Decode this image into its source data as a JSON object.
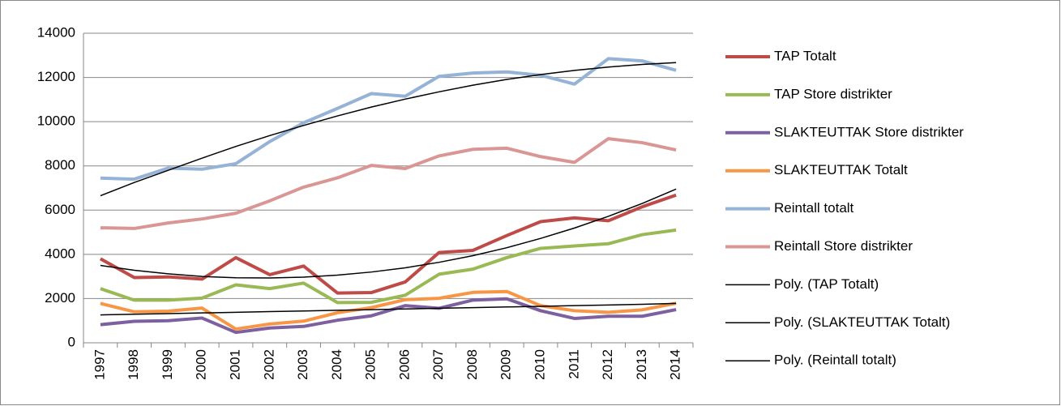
{
  "chart_data": {
    "type": "line",
    "categories": [
      "1997",
      "1998",
      "1999",
      "2000",
      "2001",
      "2002",
      "2003",
      "2004",
      "2005",
      "2006",
      "2007",
      "2008",
      "2009",
      "2010",
      "2011",
      "2012",
      "2013",
      "2014"
    ],
    "ylim": [
      0,
      14000
    ],
    "yticks": [
      0,
      2000,
      4000,
      6000,
      8000,
      10000,
      12000,
      14000
    ],
    "grid": true,
    "legend": "right",
    "series": [
      {
        "name": "TAP Totalt",
        "color": "#be4b48",
        "line_width": 4,
        "values": [
          3800,
          2950,
          2980,
          2880,
          3850,
          3080,
          3470,
          2250,
          2270,
          2750,
          4080,
          4180,
          4850,
          5480,
          5650,
          5520,
          6150,
          6680
        ]
      },
      {
        "name": "TAP Store distrikter",
        "color": "#98b954",
        "line_width": 4,
        "values": [
          2450,
          1930,
          1930,
          2020,
          2620,
          2450,
          2700,
          1820,
          1830,
          2150,
          3100,
          3330,
          3850,
          4270,
          4380,
          4480,
          4890,
          5100
        ]
      },
      {
        "name": "SLAKTEUTTAK Store distrikter",
        "color": "#7d60a0",
        "line_width": 4,
        "values": [
          820,
          970,
          1000,
          1120,
          470,
          670,
          740,
          1020,
          1220,
          1680,
          1560,
          1930,
          1990,
          1450,
          1100,
          1200,
          1200,
          1500
        ]
      },
      {
        "name": "SLAKTEUTTAK Totalt",
        "color": "#f79646",
        "line_width": 4,
        "values": [
          1780,
          1400,
          1430,
          1570,
          620,
          850,
          980,
          1360,
          1590,
          1950,
          2010,
          2280,
          2320,
          1680,
          1450,
          1380,
          1490,
          1790
        ]
      },
      {
        "name": "Reintall totalt",
        "color": "#95b3d7",
        "line_width": 4,
        "values": [
          7450,
          7400,
          7900,
          7850,
          8100,
          9100,
          9950,
          10600,
          11270,
          11150,
          12050,
          12200,
          12250,
          12100,
          11700,
          12850,
          12750,
          12320
        ]
      },
      {
        "name": "Reintall Store distrikter",
        "color": "#d99694",
        "line_width": 4,
        "values": [
          5200,
          5170,
          5420,
          5600,
          5860,
          6420,
          7040,
          7460,
          8020,
          7880,
          8450,
          8750,
          8800,
          8420,
          8160,
          9230,
          9050,
          8720
        ]
      },
      {
        "name": "Poly. (TAP Totalt)",
        "color": "#000000",
        "line_width": 1.5,
        "values": [
          3500,
          3280,
          3120,
          3000,
          2940,
          2930,
          2970,
          3060,
          3200,
          3390,
          3640,
          3940,
          4300,
          4720,
          5190,
          5720,
          6300,
          6950
        ]
      },
      {
        "name": "Poly. (SLAKTEUTTAK Totalt)",
        "color": "#000000",
        "line_width": 1.5,
        "values": [
          1260,
          1290,
          1320,
          1350,
          1380,
          1410,
          1440,
          1470,
          1500,
          1530,
          1560,
          1590,
          1620,
          1650,
          1680,
          1710,
          1740,
          1780
        ]
      },
      {
        "name": "Poly. (Reintall totalt)",
        "color": "#000000",
        "line_width": 1.5,
        "values": [
          6650,
          7250,
          7800,
          8350,
          8880,
          9370,
          9830,
          10260,
          10660,
          11020,
          11350,
          11650,
          11910,
          12130,
          12320,
          12470,
          12590,
          12670
        ]
      }
    ]
  }
}
